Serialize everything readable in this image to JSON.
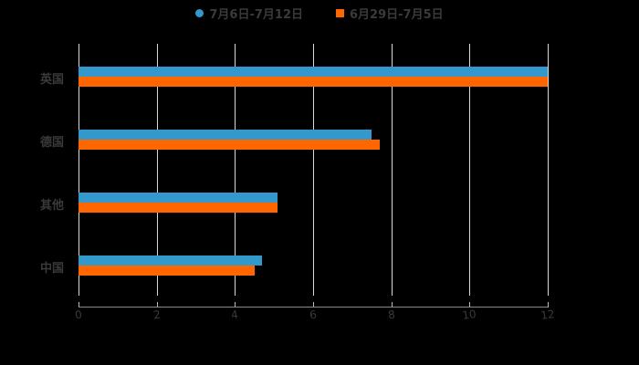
{
  "chart_data": {
    "type": "bar",
    "orientation": "horizontal",
    "title": "",
    "xlabel": "",
    "ylabel": "",
    "categories": [
      "英国",
      "德国",
      "其他",
      "中国"
    ],
    "series": [
      {
        "name": "7月6日-7月12日",
        "color": "#3399cc",
        "marker": "circle",
        "values": [
          12,
          7.5,
          5.1,
          4.7
        ]
      },
      {
        "name": "6月29日-7月5日",
        "color": "#ff6600",
        "marker": "square",
        "values": [
          12,
          7.7,
          5.1,
          4.5
        ]
      }
    ],
    "xlim": [
      0,
      12
    ],
    "xticks": [
      "0",
      "2",
      "4",
      "6",
      "8",
      "10",
      "12"
    ],
    "grid": true,
    "legend_position": "top"
  },
  "legend": {
    "series_0": "7月6日-7月12日",
    "series_1": "6月29日-7月5日"
  },
  "colors": {
    "series_0": "#3399cc",
    "series_1": "#ff6600",
    "background": "#000000",
    "text": "#3a3a3a"
  }
}
